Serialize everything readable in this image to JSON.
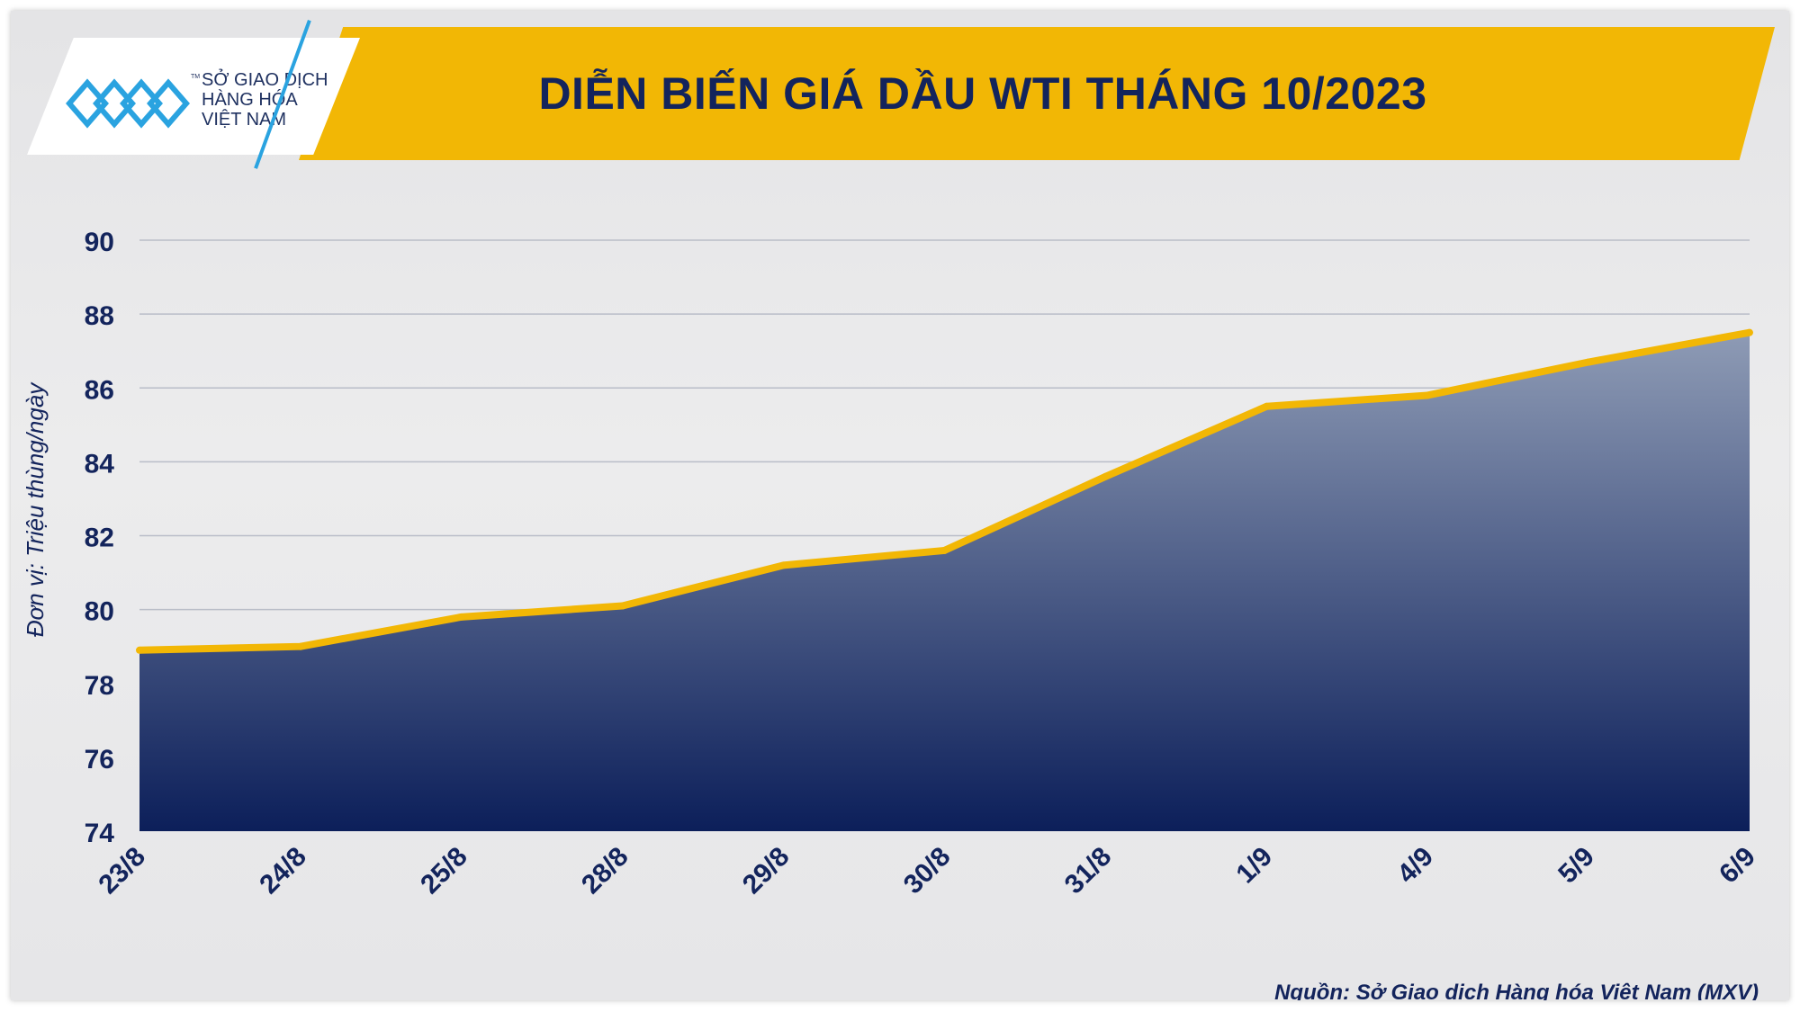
{
  "header": {
    "title": "DIỄN BIẾN GIÁ DẦU WTI THÁNG 10/2023",
    "logo_lines": [
      "SỞ GIAO DỊCH",
      "HÀNG HÓA",
      "VIỆT NAM"
    ],
    "logo_tm": "TM"
  },
  "colors": {
    "banner": "#f2b705",
    "title": "#13245c",
    "line": "#f2b705",
    "area_top": "#8e9bb5",
    "area_bottom": "#0c1f5a",
    "logo_accent": "#2aa3e0"
  },
  "footer": {
    "source": "Nguồn: Sở Giao dịch Hàng hóa Việt Nam (MXV)"
  },
  "chart_data": {
    "type": "area",
    "title": "DIỄN BIẾN GIÁ DẦU WTI THÁNG 10/2023",
    "ylabel": "Đơn vị: Triệu thùng/ngày",
    "xlabel": "",
    "categories": [
      "23/8",
      "24/8",
      "25/8",
      "28/8",
      "29/8",
      "30/8",
      "31/8",
      "1/9",
      "4/9",
      "5/9",
      "6/9"
    ],
    "values": [
      78.9,
      79.0,
      79.8,
      80.1,
      81.2,
      81.6,
      83.6,
      85.5,
      85.8,
      86.7,
      87.5
    ],
    "ylim": [
      74,
      90
    ],
    "yticks": [
      74,
      76,
      78,
      80,
      82,
      84,
      86,
      88,
      90
    ],
    "grid": true,
    "legend": "none"
  }
}
